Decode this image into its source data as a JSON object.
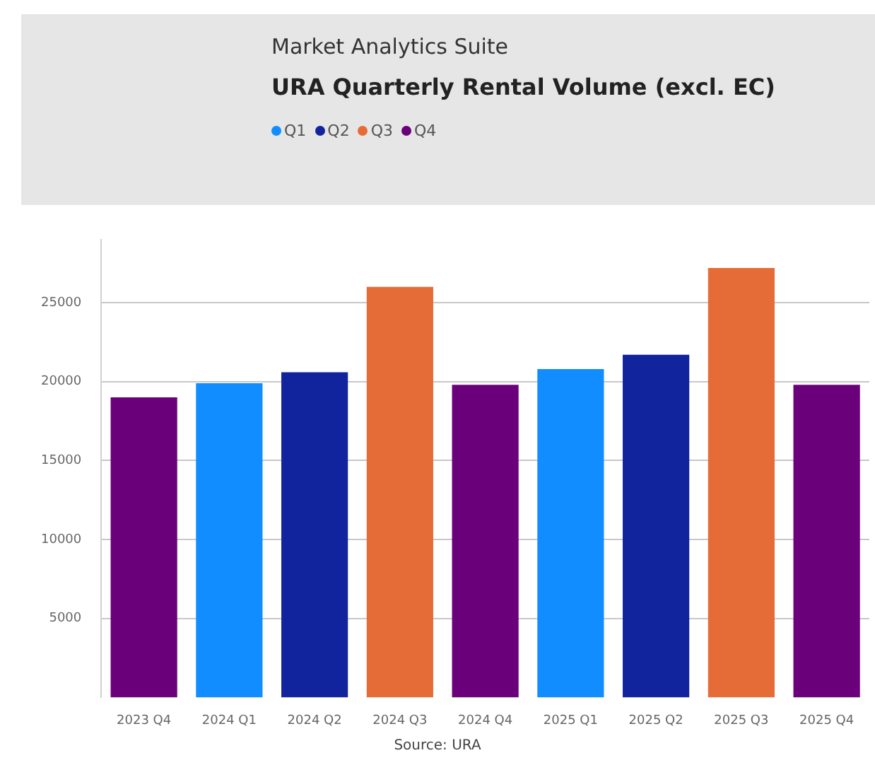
{
  "chart_data": {
    "type": "bar",
    "subtitle": "Market Analytics Suite",
    "title": "URA Quarterly Rental Volume (excl. EC)",
    "categories": [
      "2023 Q4",
      "2024 Q1",
      "2024 Q2",
      "2024 Q3",
      "2024 Q4",
      "2025 Q1",
      "2025 Q2",
      "2025 Q3",
      "2025 Q4"
    ],
    "series": [
      {
        "name": "Q1",
        "color": "#118dff",
        "values": [
          null,
          19900,
          null,
          null,
          null,
          20800,
          null,
          null,
          null
        ]
      },
      {
        "name": "Q2",
        "color": "#12239e",
        "values": [
          null,
          null,
          20600,
          null,
          null,
          null,
          21700,
          null,
          null
        ]
      },
      {
        "name": "Q3",
        "color": "#e66c37",
        "values": [
          null,
          null,
          null,
          26000,
          null,
          null,
          null,
          27200,
          null
        ]
      },
      {
        "name": "Q4",
        "color": "#6b007b",
        "values": [
          19000,
          null,
          null,
          null,
          19800,
          null,
          null,
          null,
          19800
        ]
      }
    ],
    "ylim": [
      0,
      29000
    ],
    "yticks": [
      5000,
      10000,
      15000,
      20000,
      25000
    ],
    "grid": "y",
    "legend": "top left",
    "annotations": [
      "Source: URA"
    ]
  }
}
